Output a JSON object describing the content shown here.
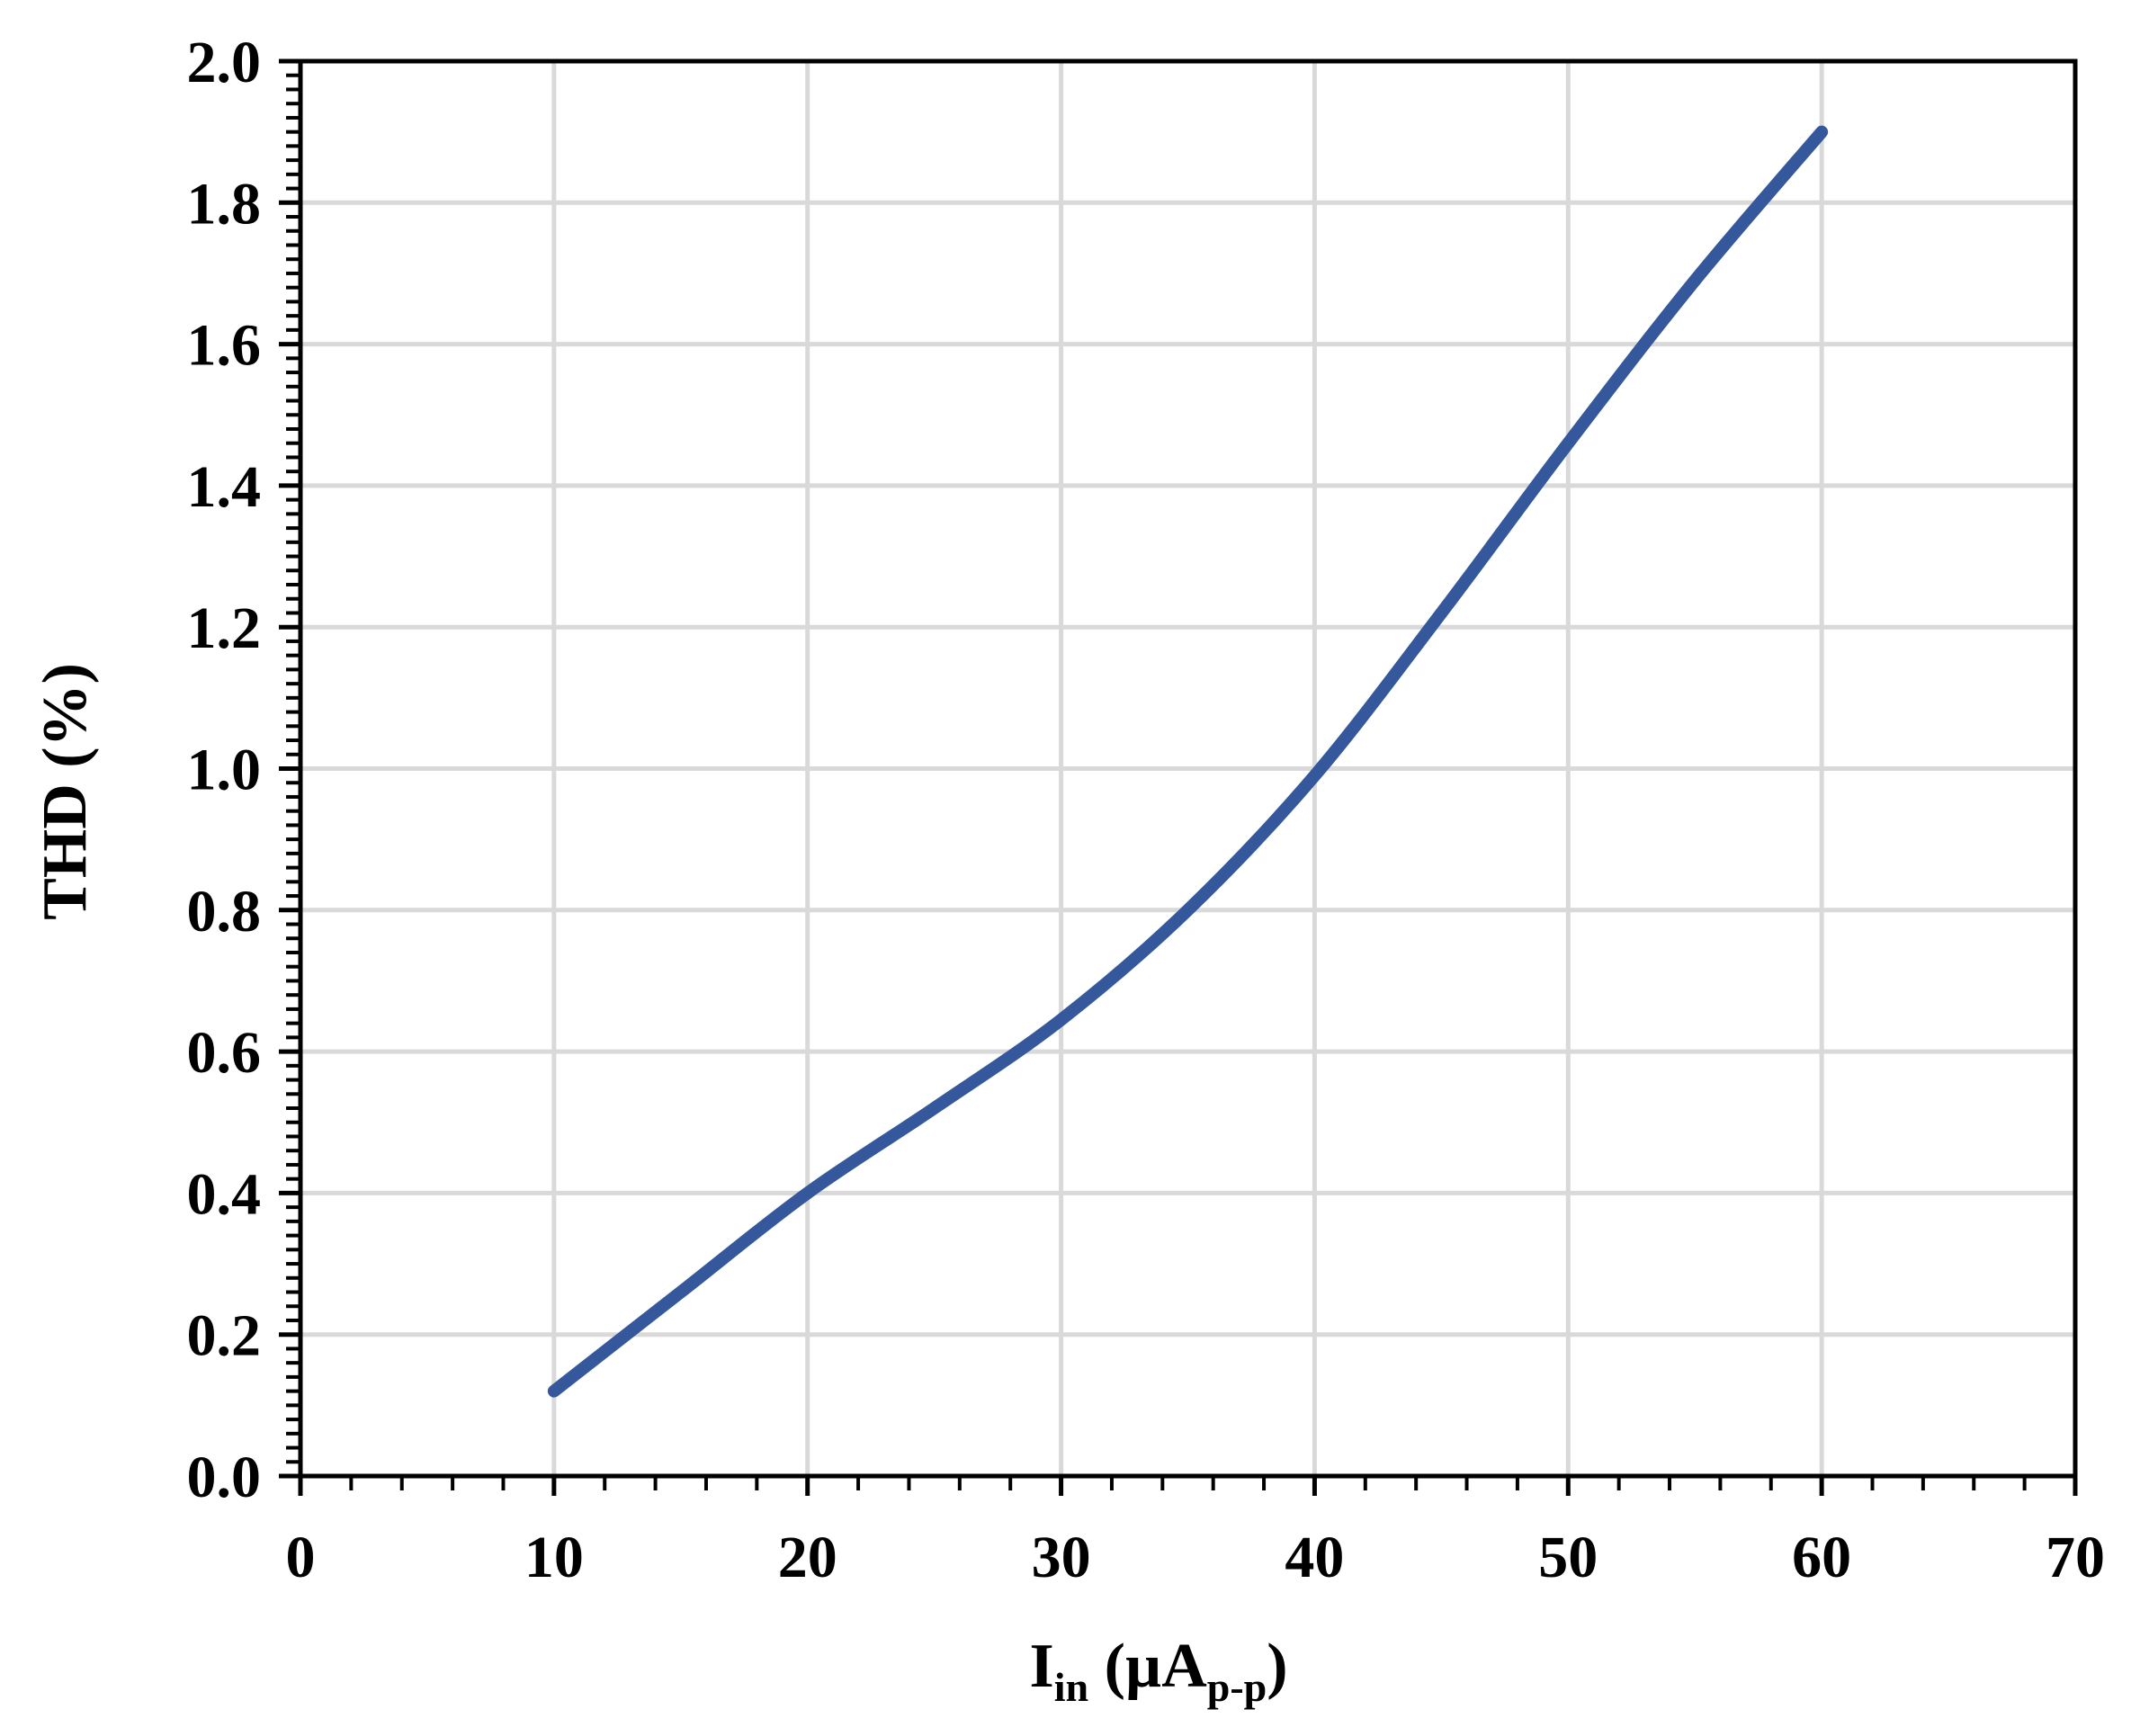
{
  "chart_data": {
    "type": "line",
    "xlabel": {
      "main": "I",
      "sub": "in",
      "rest": " (µA",
      "sub2": "p-p",
      "close": ")"
    },
    "ylabel": "THD (%)",
    "xlim": [
      0,
      70
    ],
    "ylim": [
      0,
      2.0
    ],
    "xticks": [
      0,
      10,
      20,
      30,
      40,
      50,
      60,
      70
    ],
    "yticks": [
      "0.0",
      "0.2",
      "0.4",
      "0.6",
      "0.8",
      "1.0",
      "1.2",
      "1.4",
      "1.6",
      "1.8",
      "2.0"
    ],
    "grid": true,
    "series": [
      {
        "color": "#34589B",
        "x": [
          10,
          15,
          20,
          25,
          30,
          35,
          40,
          45,
          50,
          55,
          60
        ],
        "y": [
          0.12,
          0.26,
          0.4,
          0.52,
          0.645,
          0.8,
          0.99,
          1.22,
          1.46,
          1.69,
          1.9
        ]
      }
    ]
  }
}
